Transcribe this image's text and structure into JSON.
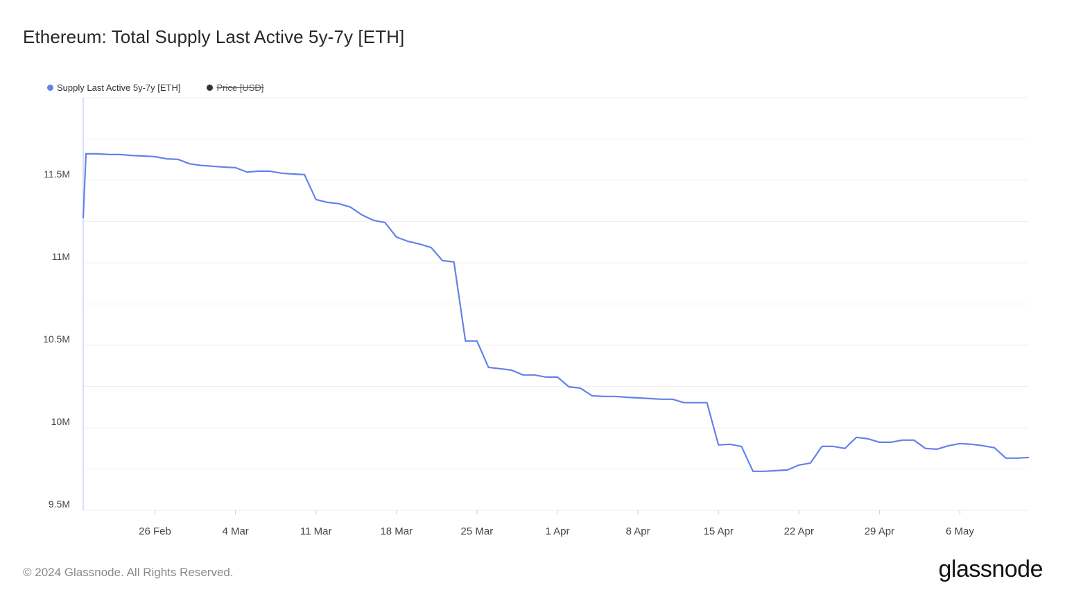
{
  "chart_data": {
    "type": "line",
    "title": "Ethereum: Total Supply Last Active 5y-7y [ETH]",
    "xlabel": "",
    "ylabel": "",
    "x_unit": "days since 20 Feb 2024",
    "ylim": [
      9.5,
      12.0
    ],
    "y_unit": "M ETH",
    "grid": true,
    "legend_position": "top-left",
    "legend": [
      {
        "name": "Supply Last Active 5y-7y [ETH]",
        "color": "#6382ea",
        "hidden": false
      },
      {
        "name": "Price [USD]",
        "color": "#333333",
        "hidden": true
      }
    ],
    "y_ticks": [
      {
        "value": 9.5,
        "label": "9.5M"
      },
      {
        "value": 10.0,
        "label": "10M"
      },
      {
        "value": 10.5,
        "label": "10.5M"
      },
      {
        "value": 11.0,
        "label": "11M"
      },
      {
        "value": 11.5,
        "label": "11.5M"
      }
    ],
    "x_ticks": [
      {
        "value": 6,
        "label": "26 Feb"
      },
      {
        "value": 13,
        "label": "4 Mar"
      },
      {
        "value": 20,
        "label": "11 Mar"
      },
      {
        "value": 27,
        "label": "18 Mar"
      },
      {
        "value": 34,
        "label": "25 Mar"
      },
      {
        "value": 41,
        "label": "1 Apr"
      },
      {
        "value": 48,
        "label": "8 Apr"
      },
      {
        "value": 55,
        "label": "15 Apr"
      },
      {
        "value": 62,
        "label": "22 Apr"
      },
      {
        "value": 69,
        "label": "29 Apr"
      },
      {
        "value": 76,
        "label": "6 May"
      }
    ],
    "xlim": [
      -0.3,
      82
    ],
    "series": [
      {
        "name": "Supply Last Active 5y-7y [ETH]",
        "x": [
          -0.3,
          0,
          1,
          2,
          3,
          4,
          5,
          6,
          7,
          8,
          9,
          10,
          11,
          12,
          13,
          14,
          15,
          16,
          17,
          18,
          19,
          20,
          21,
          22,
          23,
          24,
          25,
          26,
          27,
          28,
          29,
          30,
          31,
          32,
          33,
          34,
          35,
          36,
          37,
          38,
          39,
          40,
          41,
          42,
          43,
          44,
          45,
          46,
          47,
          48,
          49,
          50,
          51,
          52,
          53,
          54,
          55,
          56,
          57,
          58,
          59,
          60,
          61,
          62,
          63,
          64,
          65,
          66,
          67,
          68,
          69,
          70,
          71,
          72,
          73,
          74,
          75,
          76,
          77,
          78,
          79,
          80,
          81,
          82
        ],
        "values": [
          11.27,
          11.66,
          11.66,
          11.656,
          11.656,
          11.65,
          11.647,
          11.643,
          11.63,
          11.627,
          11.6,
          11.59,
          11.585,
          11.58,
          11.576,
          11.55,
          11.555,
          11.555,
          11.543,
          11.538,
          11.534,
          11.383,
          11.366,
          11.358,
          11.337,
          11.29,
          11.257,
          11.244,
          11.156,
          11.13,
          11.114,
          11.093,
          11.013,
          11.005,
          10.526,
          10.526,
          10.366,
          10.358,
          10.349,
          10.32,
          10.32,
          10.307,
          10.307,
          10.248,
          10.24,
          10.194,
          10.19,
          10.19,
          10.185,
          10.181,
          10.177,
          10.173,
          10.173,
          10.152,
          10.152,
          10.152,
          9.896,
          9.9,
          9.887,
          9.736,
          9.736,
          9.74,
          9.744,
          9.774,
          9.786,
          9.887,
          9.887,
          9.875,
          9.942,
          9.933,
          9.912,
          9.912,
          9.925,
          9.925,
          9.875,
          9.87,
          9.891,
          9.904,
          9.9,
          9.891,
          9.879,
          9.816,
          9.816,
          9.82
        ]
      }
    ]
  },
  "footer": {
    "copyright": "© 2024 Glassnode. All Rights Reserved.",
    "logo": "glassnode"
  }
}
